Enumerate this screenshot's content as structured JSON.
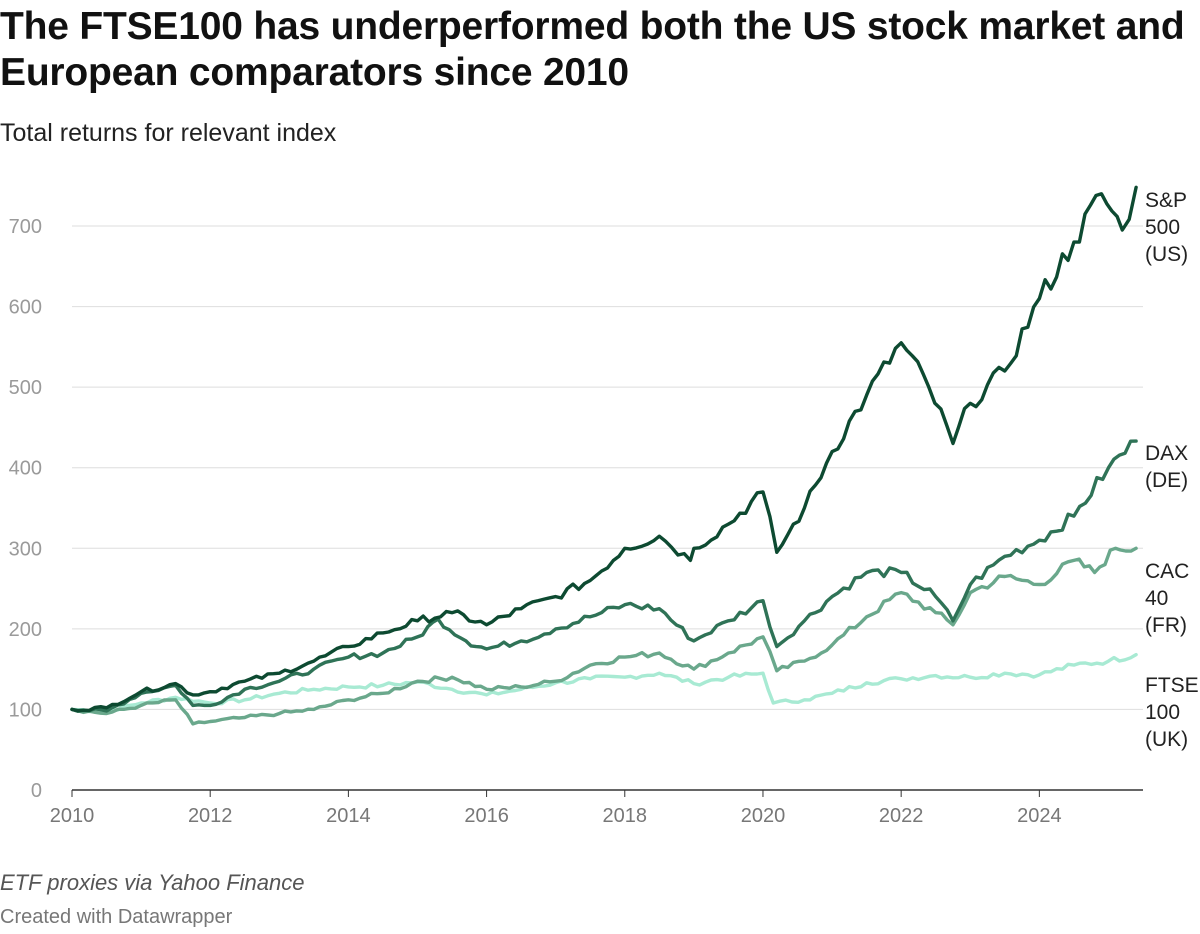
{
  "title": "The FTSE100 has underperformed both the US stock market and European comparators since 2010",
  "subtitle": "Total returns for relevant index",
  "note": "ETF proxies via Yahoo Finance",
  "credit": "Created with Datawrapper",
  "chart_data": {
    "type": "line",
    "xlim": [
      2010,
      2025.5
    ],
    "ylim": [
      0,
      750
    ],
    "grid": true,
    "legend": "direct labels at line ends",
    "x_ticks": [
      2010,
      2012,
      2014,
      2016,
      2018,
      2020,
      2022,
      2024
    ],
    "y_ticks": [
      0,
      100,
      200,
      300,
      400,
      500,
      600,
      700
    ],
    "series": [
      {
        "name": "FTSE 100 (UK)",
        "label_lines": [
          "FTSE",
          "100",
          "(UK)"
        ],
        "color": "#a8ead3",
        "points": [
          [
            2010,
            100
          ],
          [
            2010.5,
            98
          ],
          [
            2011,
            108
          ],
          [
            2011.5,
            115
          ],
          [
            2012,
            108
          ],
          [
            2012.5,
            112
          ],
          [
            2013,
            120
          ],
          [
            2013.5,
            125
          ],
          [
            2014,
            128
          ],
          [
            2014.5,
            130
          ],
          [
            2015,
            134
          ],
          [
            2015.5,
            125
          ],
          [
            2016,
            118
          ],
          [
            2016.5,
            125
          ],
          [
            2017,
            133
          ],
          [
            2017.5,
            138
          ],
          [
            2018,
            140
          ],
          [
            2018.5,
            145
          ],
          [
            2019,
            132
          ],
          [
            2019.5,
            140
          ],
          [
            2020,
            145
          ],
          [
            2020.15,
            108
          ],
          [
            2020.6,
            112
          ],
          [
            2021,
            120
          ],
          [
            2021.5,
            133
          ],
          [
            2022,
            138
          ],
          [
            2022.5,
            142
          ],
          [
            2023,
            140
          ],
          [
            2023.5,
            145
          ],
          [
            2024,
            143
          ],
          [
            2024.5,
            155
          ],
          [
            2025,
            160
          ],
          [
            2025.4,
            168
          ]
        ]
      },
      {
        "name": "CAC 40 (FR)",
        "label_lines": [
          "CAC",
          "40",
          "(FR)"
        ],
        "color": "#6aa88c",
        "points": [
          [
            2010,
            100
          ],
          [
            2010.5,
            95
          ],
          [
            2011,
            105
          ],
          [
            2011.5,
            112
          ],
          [
            2011.75,
            82
          ],
          [
            2012,
            85
          ],
          [
            2012.5,
            90
          ],
          [
            2013,
            95
          ],
          [
            2013.5,
            100
          ],
          [
            2014,
            112
          ],
          [
            2014.5,
            120
          ],
          [
            2015,
            135
          ],
          [
            2015.5,
            140
          ],
          [
            2016,
            125
          ],
          [
            2016.5,
            128
          ],
          [
            2017,
            135
          ],
          [
            2017.5,
            155
          ],
          [
            2018,
            165
          ],
          [
            2018.5,
            170
          ],
          [
            2019,
            150
          ],
          [
            2019.5,
            170
          ],
          [
            2020,
            190
          ],
          [
            2020.2,
            148
          ],
          [
            2020.6,
            160
          ],
          [
            2021,
            180
          ],
          [
            2021.5,
            215
          ],
          [
            2022,
            245
          ],
          [
            2022.5,
            220
          ],
          [
            2022.75,
            205
          ],
          [
            2023,
            245
          ],
          [
            2023.5,
            265
          ],
          [
            2024,
            255
          ],
          [
            2024.5,
            285
          ],
          [
            2024.8,
            270
          ],
          [
            2025.1,
            300
          ],
          [
            2025.4,
            300
          ]
        ]
      },
      {
        "name": "DAX (DE)",
        "label_lines": [
          "DAX",
          "(DE)"
        ],
        "color": "#2f7357",
        "points": [
          [
            2010,
            100
          ],
          [
            2010.5,
            98
          ],
          [
            2011,
            120
          ],
          [
            2011.5,
            130
          ],
          [
            2011.75,
            105
          ],
          [
            2012,
            105
          ],
          [
            2012.5,
            125
          ],
          [
            2013,
            135
          ],
          [
            2013.5,
            150
          ],
          [
            2014,
            165
          ],
          [
            2014.5,
            170
          ],
          [
            2015,
            190
          ],
          [
            2015.3,
            212
          ],
          [
            2015.7,
            185
          ],
          [
            2016,
            175
          ],
          [
            2016.5,
            185
          ],
          [
            2017,
            200
          ],
          [
            2017.5,
            215
          ],
          [
            2018,
            230
          ],
          [
            2018.5,
            225
          ],
          [
            2019,
            185
          ],
          [
            2019.5,
            210
          ],
          [
            2020,
            235
          ],
          [
            2020.2,
            178
          ],
          [
            2020.6,
            210
          ],
          [
            2021,
            240
          ],
          [
            2021.5,
            270
          ],
          [
            2022,
            270
          ],
          [
            2022.5,
            240
          ],
          [
            2022.75,
            210
          ],
          [
            2023,
            255
          ],
          [
            2023.5,
            290
          ],
          [
            2024,
            310
          ],
          [
            2024.5,
            340
          ],
          [
            2025,
            400
          ],
          [
            2025.4,
            433
          ]
        ]
      },
      {
        "name": "S&P 500 (US)",
        "label_lines": [
          "S&P",
          "500",
          "(US)"
        ],
        "color": "#0d4a31",
        "points": [
          [
            2010,
            100
          ],
          [
            2010.5,
            102
          ],
          [
            2011,
            122
          ],
          [
            2011.5,
            132
          ],
          [
            2011.75,
            118
          ],
          [
            2012,
            122
          ],
          [
            2012.5,
            135
          ],
          [
            2013,
            145
          ],
          [
            2013.5,
            160
          ],
          [
            2014,
            178
          ],
          [
            2014.5,
            195
          ],
          [
            2015,
            210
          ],
          [
            2015.5,
            220
          ],
          [
            2016,
            205
          ],
          [
            2016.5,
            225
          ],
          [
            2017,
            240
          ],
          [
            2017.5,
            260
          ],
          [
            2018,
            300
          ],
          [
            2018.5,
            315
          ],
          [
            2018.95,
            285
          ],
          [
            2019,
            300
          ],
          [
            2019.5,
            330
          ],
          [
            2020,
            370
          ],
          [
            2020.2,
            295
          ],
          [
            2020.6,
            350
          ],
          [
            2021,
            420
          ],
          [
            2021.5,
            490
          ],
          [
            2022,
            555
          ],
          [
            2022.4,
            500
          ],
          [
            2022.75,
            430
          ],
          [
            2023,
            480
          ],
          [
            2023.5,
            520
          ],
          [
            2024,
            610
          ],
          [
            2024.5,
            680
          ],
          [
            2024.9,
            740
          ],
          [
            2025.2,
            695
          ],
          [
            2025.4,
            748
          ]
        ]
      }
    ]
  }
}
